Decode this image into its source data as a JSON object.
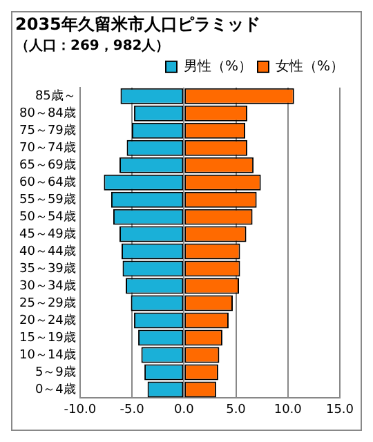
{
  "chart_data": {
    "type": "bar",
    "orientation": "horizontal",
    "stacked": true,
    "title": "2035年久留米市人口ピラミッド",
    "subtitle": "（人口：269，982人）",
    "categories": [
      "85歳～",
      "80～84歳",
      "75～79歳",
      "70～74歳",
      "65～69歳",
      "60～64歳",
      "55～59歳",
      "50～54歳",
      "45～49歳",
      "40～44歳",
      "35～39歳",
      "30～34歳",
      "25～29歳",
      "20～24歳",
      "15～19歳",
      "10～14歳",
      "5～9歳",
      "0～4歳"
    ],
    "series": [
      {
        "name": "男性（%）",
        "color": "#1ab0d8",
        "values": [
          -6.1,
          -4.8,
          -5.0,
          -5.5,
          -6.2,
          -7.7,
          -7.0,
          -6.8,
          -6.2,
          -6.0,
          -5.9,
          -5.6,
          -5.1,
          -4.8,
          -4.4,
          -4.1,
          -3.8,
          -3.5
        ]
      },
      {
        "name": "女性（%）",
        "color": "#ff6a00",
        "values": [
          10.6,
          6.1,
          5.9,
          6.1,
          6.7,
          7.4,
          7.0,
          6.6,
          6.0,
          5.4,
          5.4,
          5.3,
          4.7,
          4.3,
          3.7,
          3.4,
          3.3,
          3.1
        ]
      }
    ],
    "xlim": [
      -10,
      15
    ],
    "xticks": [
      {
        "value": -10,
        "label": "-10.0"
      },
      {
        "value": -5,
        "label": "-5.0"
      },
      {
        "value": 0,
        "label": "0.0"
      },
      {
        "value": 5,
        "label": "5.0"
      },
      {
        "value": 10,
        "label": "10.0"
      },
      {
        "value": 15,
        "label": "15.0"
      }
    ],
    "grid": "x",
    "legend": "top right"
  }
}
